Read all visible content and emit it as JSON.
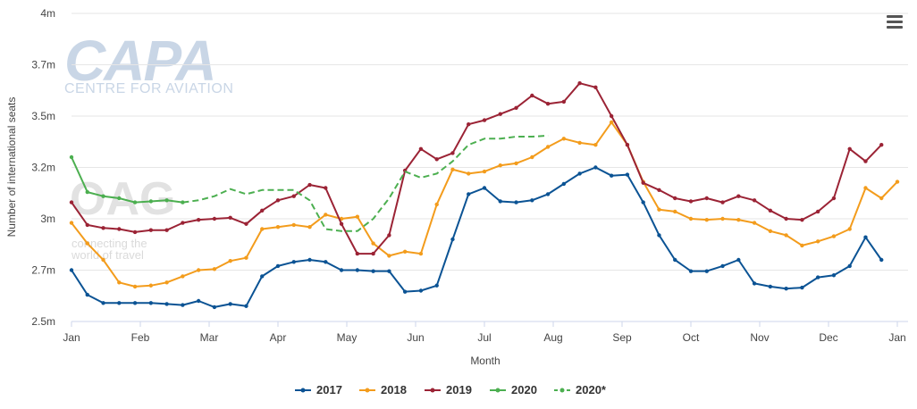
{
  "chart_data": {
    "type": "line",
    "title": "",
    "xlabel": "Month",
    "ylabel": "Number of international seats",
    "x_tick_labels": [
      "Jan",
      "Feb",
      "Mar",
      "Apr",
      "May",
      "Jun",
      "Jul",
      "Aug",
      "Sep",
      "Oct",
      "Nov",
      "Dec",
      "Jan"
    ],
    "x_range_weeks": [
      0,
      52
    ],
    "y_tick_labels": [
      "2.5m",
      "2.7m",
      "3m",
      "3.2m",
      "3.5m",
      "3.7m",
      "4m"
    ],
    "ylim": [
      2.5,
      4.0
    ],
    "grid": true,
    "legend_position": "bottom-center",
    "series": [
      {
        "name": "2017",
        "color": "#0b5394",
        "dash": false,
        "values": [
          2.75,
          2.63,
          2.59,
          2.59,
          2.59,
          2.59,
          2.585,
          2.58,
          2.6,
          2.57,
          2.585,
          2.575,
          2.72,
          2.77,
          2.79,
          2.8,
          2.79,
          2.75,
          2.75,
          2.745,
          2.745,
          2.645,
          2.65,
          2.675,
          2.9,
          3.12,
          3.15,
          3.085,
          3.08,
          3.09,
          3.12,
          3.17,
          3.22,
          3.25,
          3.21,
          3.215,
          3.08,
          2.92,
          2.8,
          2.745,
          2.745,
          2.77,
          2.8,
          2.685,
          2.67,
          2.66,
          2.665,
          2.715,
          2.725,
          2.77,
          2.91,
          2.8
        ]
      },
      {
        "name": "2018",
        "color": "#f39c1c",
        "dash": false,
        "values": [
          2.98,
          2.88,
          2.8,
          2.69,
          2.67,
          2.675,
          2.69,
          2.72,
          2.75,
          2.755,
          2.795,
          2.81,
          2.95,
          2.96,
          2.97,
          2.96,
          3.02,
          3.0,
          3.01,
          2.88,
          2.82,
          2.84,
          2.83,
          3.07,
          3.24,
          3.22,
          3.23,
          3.26,
          3.27,
          3.3,
          3.35,
          3.39,
          3.37,
          3.36,
          3.47,
          3.36,
          3.18,
          3.045,
          3.035,
          3.0,
          2.995,
          3.0,
          2.995,
          2.98,
          2.94,
          2.92,
          2.87,
          2.89,
          2.915,
          2.95,
          3.15,
          3.1,
          3.18
        ]
      },
      {
        "name": "2019",
        "color": "#9b2335",
        "dash": false,
        "values": [
          3.08,
          2.97,
          2.955,
          2.95,
          2.935,
          2.945,
          2.945,
          2.98,
          2.995,
          3.0,
          3.005,
          2.975,
          3.04,
          3.09,
          3.11,
          3.165,
          3.15,
          2.975,
          2.83,
          2.83,
          2.92,
          3.235,
          3.34,
          3.29,
          3.32,
          3.46,
          3.48,
          3.51,
          3.54,
          3.6,
          3.56,
          3.57,
          3.66,
          3.64,
          3.5,
          3.36,
          3.175,
          3.14,
          3.1,
          3.085,
          3.1,
          3.08,
          3.11,
          3.09,
          3.04,
          3.0,
          2.995,
          3.035,
          3.1,
          3.34,
          3.28,
          3.36
        ]
      },
      {
        "name": "2020",
        "color": "#4caf50",
        "dash": false,
        "values": [
          3.3,
          3.13,
          3.11,
          3.1,
          3.08,
          3.085,
          3.09,
          3.08
        ]
      },
      {
        "name": "2020*",
        "color": "#4caf50",
        "dash": true,
        "start_week": 7,
        "values": [
          3.08,
          3.09,
          3.11,
          3.145,
          3.12,
          3.14,
          3.14,
          3.14,
          3.09,
          2.95,
          2.94,
          2.94,
          3.0,
          3.1,
          3.23,
          3.2,
          3.22,
          3.28,
          3.36,
          3.39,
          3.39,
          3.4,
          3.4,
          3.405
        ]
      }
    ],
    "watermark": {
      "capa_logo": "CAPA",
      "capa_sub": "CENTRE FOR AVIATION",
      "oag_logo": "OAG",
      "oag_line1": "connecting the",
      "oag_line2": "world of travel"
    }
  },
  "menu_icon": "hamburger-menu-icon"
}
